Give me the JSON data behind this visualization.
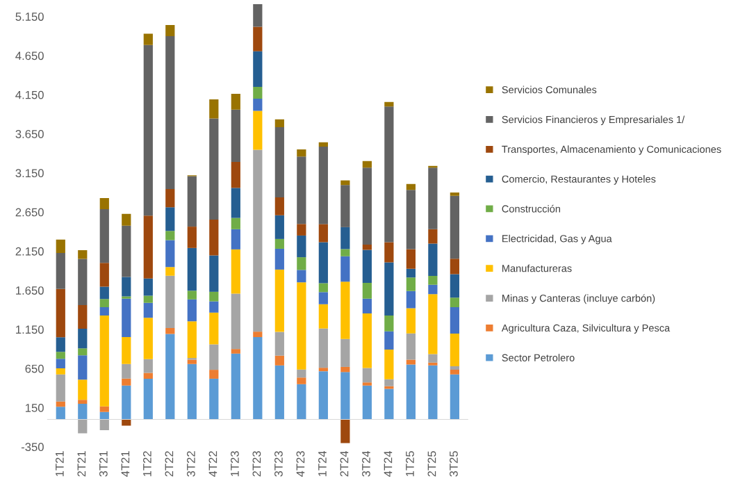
{
  "chart_data": {
    "type": "bar",
    "stacked": true,
    "categories": [
      "1T21",
      "2T21",
      "3T21",
      "4T21",
      "1T22",
      "2T22",
      "3T22",
      "4T22",
      "1T23",
      "2T23",
      "3T23",
      "4T23",
      "1T24",
      "2T24",
      "3T24",
      "4T24",
      "1T25",
      "2T25",
      "3T25"
    ],
    "series": [
      {
        "name": "Sector Petrolero",
        "color": "#5b9bd5",
        "values": [
          162,
          199,
          96,
          432,
          520,
          1092,
          708,
          520,
          841,
          1052,
          690,
          450,
          616,
          605,
          432,
          391,
          701,
          690,
          576
        ]
      },
      {
        "name": "Agricultura Caza, Silvicultura y Pesca",
        "color": "#ed7d31",
        "values": [
          66,
          52,
          70,
          89,
          74,
          77,
          55,
          114,
          59,
          70,
          125,
          85,
          44,
          66,
          41,
          33,
          63,
          37,
          59
        ]
      },
      {
        "name": "Minas y Canteras (incluye carbón)",
        "color": "#a5a5a5",
        "values": [
          347,
          -177,
          -137,
          188,
          177,
          668,
          22,
          325,
          708,
          2325,
          303,
          103,
          502,
          358,
          185,
          89,
          336,
          107,
          44
        ]
      },
      {
        "name": "Manufactureras",
        "color": "#ffc000",
        "values": [
          77,
          258,
          1162,
          343,
          528,
          111,
          469,
          406,
          565,
          498,
          797,
          1114,
          310,
          731,
          697,
          380,
          321,
          768,
          417
        ]
      },
      {
        "name": "Electricidad, Gas y Agua",
        "color": "#4472c4",
        "values": [
          122,
          310,
          107,
          491,
          192,
          343,
          280,
          144,
          258,
          155,
          266,
          159,
          155,
          325,
          188,
          232,
          221,
          118,
          339
        ]
      },
      {
        "name": "Construcción",
        "color": "#70ad47",
        "values": [
          89,
          89,
          103,
          30,
          89,
          118,
          111,
          122,
          144,
          151,
          125,
          162,
          114,
          92,
          203,
          203,
          173,
          114,
          122
        ]
      },
      {
        "name": "Comercio, Restaurantes y Hoteles",
        "color": "#255e91",
        "values": [
          188,
          251,
          159,
          247,
          221,
          303,
          546,
          465,
          384,
          454,
          303,
          277,
          524,
          280,
          421,
          679,
          111,
          413,
          299
        ]
      },
      {
        "name": "Transportes, Almacenamiento y Comunicaciones",
        "color": "#9e480e",
        "values": [
          616,
          303,
          303,
          -81,
          804,
          232,
          273,
          458,
          332,
          314,
          229,
          148,
          232,
          -303,
          66,
          258,
          251,
          185,
          199
        ]
      },
      {
        "name": "Servicios Financieros y Empresariales 1/",
        "color": "#636363",
        "values": [
          461,
          590,
          686,
          657,
          2181,
          1956,
          646,
          1292,
          668,
          288,
          897,
          863,
          989,
          539,
          985,
          1734,
          756,
          786,
          804
        ]
      },
      {
        "name": "Servicios Comunales",
        "color": "#997300",
        "values": [
          170,
          111,
          144,
          151,
          144,
          140,
          10,
          244,
          203,
          null,
          100,
          89,
          55,
          59,
          85,
          59,
          77,
          22,
          41
        ]
      }
    ],
    "ylim": [
      -350,
      5330
    ],
    "yticks": [
      -350,
      150,
      650,
      {
        "value": 1150,
        "label": "1.150"
      },
      {
        "value": 1650,
        "label": "1.650"
      },
      {
        "value": 2150,
        "label": "2.150"
      },
      {
        "value": 2650,
        "label": "2.650"
      },
      {
        "value": 3150,
        "label": "3.150"
      },
      {
        "value": 3650,
        "label": "3.650"
      },
      {
        "value": 4150,
        "label": "4.150"
      },
      {
        "value": 4650,
        "label": "4.650"
      },
      {
        "value": 5150,
        "label": "5.150"
      }
    ],
    "legend": "right"
  }
}
